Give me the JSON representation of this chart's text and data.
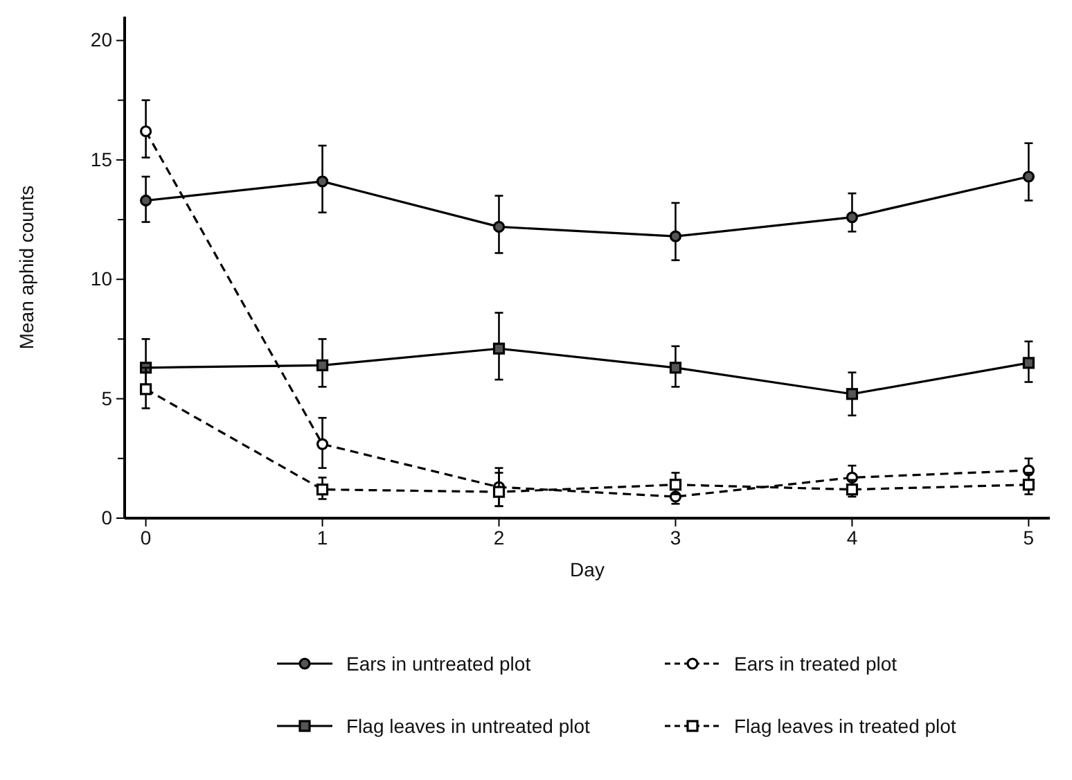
{
  "chart_data": {
    "type": "line",
    "xlabel": "Day",
    "ylabel": "Mean aphid counts",
    "x": [
      0,
      1,
      2,
      3,
      4,
      5
    ],
    "xlim": [
      -0.12,
      5.12
    ],
    "xticks": [
      0,
      1,
      2,
      3,
      4,
      5
    ],
    "ylim": [
      0,
      21
    ],
    "yticks": [
      0,
      {
        "value": 2.5,
        "label": null
      },
      5,
      {
        "value": 7.5,
        "label": null
      },
      10,
      {
        "value": 12.5,
        "label": null
      },
      15,
      {
        "value": 17.5,
        "label": null
      },
      20
    ],
    "grid": false,
    "legend": "bottom",
    "series": [
      {
        "name": "Ears in untreated plot",
        "color": "#000000",
        "marker": "circle",
        "line_style": "solid",
        "values": [
          13.3,
          14.1,
          12.2,
          11.8,
          12.6,
          14.3
        ],
        "errors": [
          [
            12.4,
            14.3
          ],
          [
            12.8,
            15.6
          ],
          [
            11.1,
            13.5
          ],
          [
            10.8,
            13.2
          ],
          [
            12.0,
            13.6
          ],
          [
            13.3,
            15.7
          ]
        ]
      },
      {
        "name": "Ears in treated plot",
        "color": "#000000",
        "marker": "circle",
        "line_style": "dashed",
        "values": [
          16.2,
          3.1,
          1.3,
          0.9,
          1.7,
          2.0
        ],
        "errors": [
          [
            15.1,
            17.5
          ],
          [
            2.1,
            4.2
          ],
          [
            0.5,
            2.1
          ],
          [
            0.6,
            1.3
          ],
          [
            1.7,
            2.2
          ],
          [
            1.6,
            2.5
          ]
        ]
      },
      {
        "name": "Flag leaves in untreated plot",
        "color": "#000000",
        "marker": "square",
        "line_style": "solid",
        "values": [
          6.3,
          6.4,
          7.1,
          6.3,
          5.2,
          6.5
        ],
        "errors": [
          [
            5.2,
            7.5
          ],
          [
            5.5,
            7.5
          ],
          [
            5.8,
            8.6
          ],
          [
            5.5,
            7.2
          ],
          [
            4.3,
            6.1
          ],
          [
            5.7,
            7.4
          ]
        ]
      },
      {
        "name": "Flag leaves in treated plot",
        "color": "#000000",
        "marker": "square",
        "line_style": "dashed",
        "values": [
          5.4,
          1.2,
          1.1,
          1.4,
          1.2,
          1.4
        ],
        "errors": [
          [
            4.6,
            6.3
          ],
          [
            0.8,
            1.7
          ],
          [
            0.5,
            1.9
          ],
          [
            1.0,
            1.9
          ],
          [
            0.9,
            1.6
          ],
          [
            1.0,
            1.9
          ]
        ]
      }
    ]
  }
}
